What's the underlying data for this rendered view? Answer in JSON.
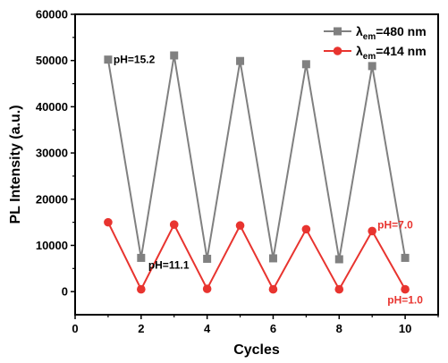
{
  "chart_data": {
    "type": "line",
    "xlabel": "Cycles",
    "ylabel": "PL Intensity (a.u.)",
    "xlim": [
      0,
      11
    ],
    "ylim": [
      -5000,
      60000
    ],
    "xticks": [
      0,
      2,
      4,
      6,
      8,
      10
    ],
    "yticks": [
      0,
      10000,
      20000,
      30000,
      40000,
      50000,
      60000
    ],
    "grid": false,
    "legend_position": "top-right",
    "series": [
      {
        "name": "λem=480 nm",
        "legend_main": "λ",
        "legend_sub": "em",
        "legend_rest": "=480 nm",
        "color": "#808080",
        "marker": "square",
        "x": [
          1,
          2,
          3,
          4,
          5,
          6,
          7,
          8,
          9,
          10
        ],
        "y": [
          50200,
          7300,
          51100,
          7100,
          49900,
          7200,
          49200,
          7000,
          48800,
          7300
        ]
      },
      {
        "name": "λem=414 nm",
        "legend_main": "λ",
        "legend_sub": "em",
        "legend_rest": "=414 nm",
        "color": "#e8342f",
        "marker": "circle",
        "x": [
          1,
          2,
          3,
          4,
          5,
          6,
          7,
          8,
          9,
          10
        ],
        "y": [
          15000,
          500,
          14500,
          600,
          14300,
          500,
          13500,
          500,
          13100,
          500
        ]
      }
    ],
    "annotations": [
      {
        "text": "pH=15.2",
        "x": 1,
        "y": 50200,
        "color": "#000000"
      },
      {
        "text": "pH=11.1",
        "x": 2,
        "y": 7300,
        "color": "#000000"
      },
      {
        "text": "pH=7.0",
        "x": 9,
        "y": 13100,
        "color": "#e8342f"
      },
      {
        "text": "pH=1.0",
        "x": 10,
        "y": 500,
        "color": "#e8342f"
      }
    ]
  }
}
